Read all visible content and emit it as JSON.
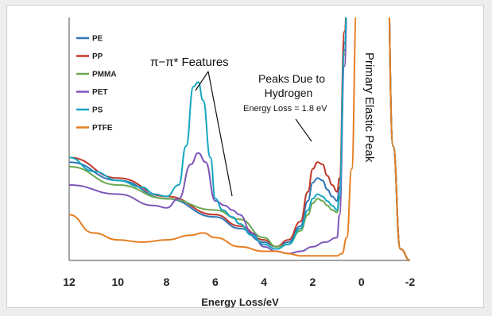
{
  "chart_data": {
    "type": "line",
    "xlabel": "Energy Loss/eV",
    "ylabel": "",
    "xlim": [
      12,
      -2
    ],
    "x_ticks": [
      "12",
      "10",
      "8",
      "6",
      "4",
      "2",
      "0",
      "-2"
    ],
    "y_ticks": [],
    "legend_position": "top-left",
    "grid": false,
    "annotations": {
      "pi": "π−π* Features",
      "hydrogen_line1": "Peaks Due to",
      "hydrogen_line2": "Hydrogen",
      "energy_loss": "Energy Loss = 1.8 eV",
      "elastic": "Primary Elastic Peak"
    },
    "series": [
      {
        "name": "PE",
        "color": "#2e75b6",
        "x": [
          12,
          10,
          8,
          6,
          5,
          4,
          3.5,
          3,
          2.5,
          2.2,
          2,
          1.8,
          1.6,
          1.4,
          1.2,
          1.0,
          0.9,
          0.7,
          0.5,
          0,
          -0.5,
          -1,
          -1.3,
          -1.6,
          -2
        ],
        "y": [
          0.43,
          0.35,
          0.27,
          0.19,
          0.14,
          0.08,
          0.06,
          0.08,
          0.15,
          0.26,
          0.34,
          0.36,
          0.35,
          0.31,
          0.28,
          0.26,
          0.32,
          0.95,
          1.6,
          1.6,
          1.6,
          1.6,
          0.5,
          0.05,
          0.0
        ]
      },
      {
        "name": "PP",
        "color": "#c0392b",
        "x": [
          12,
          10,
          8,
          6,
          5,
          4,
          3.5,
          3,
          2.5,
          2.2,
          2,
          1.8,
          1.6,
          1.4,
          1.2,
          1.0,
          0.9,
          0.7,
          0.5,
          0,
          -0.5,
          -1,
          -1.3,
          -1.6,
          -2
        ],
        "y": [
          0.45,
          0.36,
          0.28,
          0.2,
          0.15,
          0.09,
          0.06,
          0.09,
          0.17,
          0.3,
          0.4,
          0.43,
          0.42,
          0.37,
          0.33,
          0.3,
          0.36,
          1.0,
          1.6,
          1.6,
          1.6,
          1.6,
          0.5,
          0.05,
          0.0
        ]
      },
      {
        "name": "PMMA",
        "color": "#6aa84f",
        "x": [
          12,
          10,
          8,
          6,
          5,
          4,
          3.5,
          3,
          2.5,
          2.2,
          2,
          1.8,
          1.6,
          1.4,
          1.2,
          1.0,
          0.9,
          0.7,
          0.5,
          0,
          -0.5,
          -1,
          -1.3,
          -1.6,
          -2
        ],
        "y": [
          0.41,
          0.33,
          0.27,
          0.22,
          0.18,
          0.1,
          0.06,
          0.07,
          0.13,
          0.2,
          0.25,
          0.27,
          0.26,
          0.24,
          0.22,
          0.21,
          0.27,
          0.9,
          1.6,
          1.6,
          1.6,
          1.6,
          0.5,
          0.05,
          0.0
        ]
      },
      {
        "name": "PET",
        "color": "#7e57b8",
        "x": [
          12,
          10,
          8.5,
          8,
          7.5,
          7,
          6.7,
          6.4,
          6,
          5.6,
          5.3,
          5,
          4.5,
          4,
          3.5,
          3,
          2.5,
          2,
          1.5,
          1,
          0.9,
          0.7,
          0.5,
          0,
          -0.5,
          -1,
          -1.3,
          -1.6,
          -2
        ],
        "y": [
          0.33,
          0.29,
          0.24,
          0.23,
          0.27,
          0.42,
          0.47,
          0.43,
          0.26,
          0.24,
          0.22,
          0.2,
          0.12,
          0.06,
          0.04,
          0.03,
          0.04,
          0.06,
          0.08,
          0.1,
          0.2,
          0.85,
          1.6,
          1.6,
          1.6,
          1.6,
          0.5,
          0.05,
          0.0
        ]
      },
      {
        "name": "PS",
        "color": "#17a6c1",
        "x": [
          12,
          11,
          10,
          9,
          8.5,
          8,
          7.5,
          7.2,
          6.9,
          6.7,
          6.5,
          6.2,
          6,
          5.7,
          5.3,
          5,
          4.5,
          4,
          3.5,
          3,
          2.5,
          2.2,
          2,
          1.8,
          1.6,
          1.4,
          1.2,
          1.0,
          0.9,
          0.7,
          0.5,
          0,
          -0.5,
          -1,
          -1.3,
          -1.6,
          -2
        ],
        "y": [
          0.45,
          0.39,
          0.35,
          0.32,
          0.29,
          0.28,
          0.33,
          0.5,
          0.76,
          0.78,
          0.7,
          0.45,
          0.27,
          0.22,
          0.19,
          0.16,
          0.11,
          0.07,
          0.05,
          0.07,
          0.14,
          0.22,
          0.27,
          0.29,
          0.28,
          0.26,
          0.24,
          0.22,
          0.28,
          0.92,
          1.6,
          1.6,
          1.6,
          1.6,
          0.5,
          0.05,
          0.0
        ]
      },
      {
        "name": "PTFE",
        "color": "#e67e22",
        "x": [
          12,
          11,
          10,
          9,
          8,
          7,
          6.5,
          6,
          5,
          4,
          3.5,
          3,
          2.5,
          2,
          1.5,
          1.0,
          0.8,
          0.6,
          0.4,
          0.2,
          0,
          -0.5,
          -1,
          -1.3,
          -1.6,
          -2
        ],
        "y": [
          0.2,
          0.12,
          0.09,
          0.08,
          0.09,
          0.11,
          0.12,
          0.1,
          0.06,
          0.04,
          0.04,
          0.03,
          0.02,
          0.02,
          0.02,
          0.02,
          0.03,
          0.1,
          0.4,
          1.1,
          1.6,
          1.6,
          1.6,
          0.5,
          0.05,
          0.0
        ]
      }
    ]
  }
}
